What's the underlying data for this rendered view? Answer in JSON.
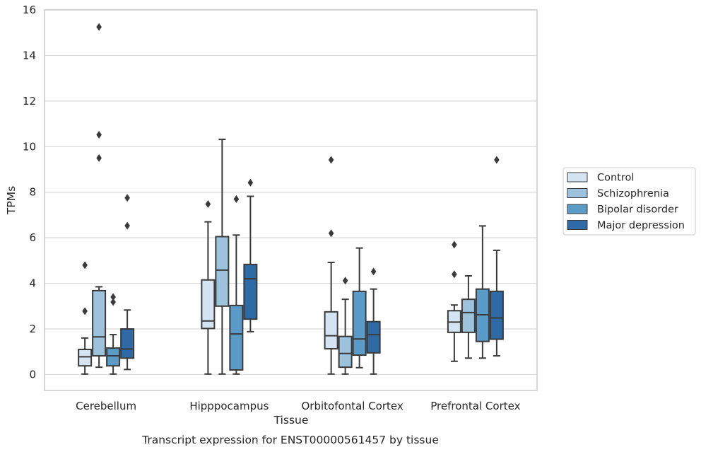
{
  "chart_data": {
    "type": "box",
    "title": "",
    "caption": "Transcript expression for ENST00000561457 by tissue",
    "xlabel": "Tissue",
    "ylabel": "TPMs",
    "ylim": [
      -0.7,
      16
    ],
    "yticks": [
      0,
      2,
      4,
      6,
      8,
      10,
      12,
      14,
      16
    ],
    "grid": "horizontal",
    "legend_position": "right",
    "categories": [
      "Cerebellum",
      "Hipppocampus",
      "Orbitofontal Cortex",
      "Prefrontal Cortex"
    ],
    "series": [
      {
        "name": "Control",
        "color": "#d4e4f2",
        "boxes": [
          {
            "whislo": 0.02,
            "q1": 0.38,
            "med": 0.78,
            "q3": 1.1,
            "whishi": 1.6,
            "fliers": [
              2.78,
              4.8
            ]
          },
          {
            "whislo": 0.02,
            "q1": 2.02,
            "med": 2.35,
            "q3": 4.15,
            "whishi": 6.7,
            "fliers": [
              7.48
            ]
          },
          {
            "whislo": 0.02,
            "q1": 1.13,
            "med": 1.7,
            "q3": 2.75,
            "whishi": 4.92,
            "fliers": [
              6.2,
              9.42
            ]
          },
          {
            "whislo": 0.58,
            "q1": 1.85,
            "med": 2.3,
            "q3": 2.8,
            "whishi": 3.05,
            "fliers": [
              4.4,
              5.7
            ]
          }
        ]
      },
      {
        "name": "Schizophrenia",
        "color": "#9dc3dc",
        "boxes": [
          {
            "whislo": 0.32,
            "q1": 0.82,
            "med": 1.65,
            "q3": 3.68,
            "whishi": 3.85,
            "fliers": [
              9.5,
              10.52,
              15.25
            ]
          },
          {
            "whislo": 0.02,
            "q1": 3.0,
            "med": 4.58,
            "q3": 6.05,
            "whishi": 10.32,
            "fliers": []
          },
          {
            "whislo": 0.02,
            "q1": 0.32,
            "med": 0.92,
            "q3": 1.67,
            "whishi": 3.3,
            "fliers": [
              4.12
            ]
          },
          {
            "whislo": 0.72,
            "q1": 1.85,
            "med": 2.72,
            "q3": 3.3,
            "whishi": 4.33,
            "fliers": []
          }
        ]
      },
      {
        "name": "Bipolar disorder",
        "color": "#5a9bc7",
        "boxes": [
          {
            "whislo": 0.02,
            "q1": 0.38,
            "med": 0.82,
            "q3": 1.16,
            "whishi": 1.75,
            "fliers": [
              3.18,
              3.4
            ]
          },
          {
            "whislo": 0.02,
            "q1": 0.2,
            "med": 1.78,
            "q3": 3.03,
            "whishi": 6.12,
            "fliers": [
              7.7
            ]
          },
          {
            "whislo": 0.3,
            "q1": 0.85,
            "med": 1.56,
            "q3": 3.65,
            "whishi": 5.55,
            "fliers": []
          },
          {
            "whislo": 0.72,
            "q1": 1.45,
            "med": 2.62,
            "q3": 3.75,
            "whishi": 6.52,
            "fliers": []
          }
        ]
      },
      {
        "name": "Major depression",
        "color": "#2d6aa6",
        "boxes": [
          {
            "whislo": 0.22,
            "q1": 0.72,
            "med": 1.12,
            "q3": 2.0,
            "whishi": 2.83,
            "fliers": [
              6.53,
              7.75
            ]
          },
          {
            "whislo": 1.88,
            "q1": 2.43,
            "med": 4.2,
            "q3": 4.83,
            "whishi": 7.82,
            "fliers": [
              8.42
            ]
          },
          {
            "whislo": 0.02,
            "q1": 0.95,
            "med": 1.75,
            "q3": 2.32,
            "whishi": 3.75,
            "fliers": [
              4.52
            ]
          },
          {
            "whislo": 0.82,
            "q1": 1.55,
            "med": 2.48,
            "q3": 3.65,
            "whishi": 5.45,
            "fliers": [
              9.42
            ]
          }
        ]
      }
    ]
  }
}
